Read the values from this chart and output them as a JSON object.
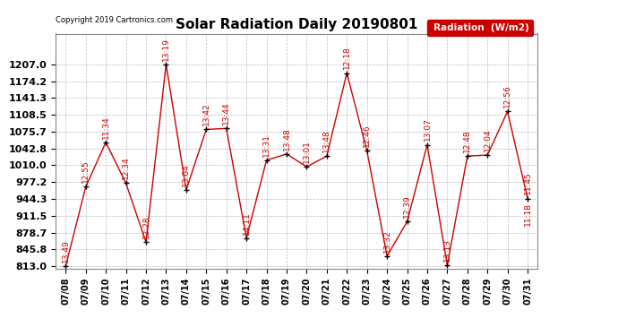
{
  "title": "Solar Radiation Daily 20190801",
  "copyright": "Copyright 2019 Cartronics.com",
  "legend_label": "Radiation  (W/m2)",
  "dates": [
    "07/08",
    "07/09",
    "07/10",
    "07/11",
    "07/12",
    "07/13",
    "07/14",
    "07/15",
    "07/16",
    "07/17",
    "07/18",
    "07/19",
    "07/20",
    "07/21",
    "07/22",
    "07/23",
    "07/24",
    "07/25",
    "07/26",
    "07/27",
    "07/28",
    "07/29",
    "07/30",
    "07/31"
  ],
  "values": [
    813.0,
    968.0,
    1055.0,
    975.0,
    860.0,
    1207.0,
    962.0,
    1080.0,
    1082.0,
    868.0,
    1020.0,
    1032.0,
    1007.0,
    1028.0,
    1190.0,
    1038.0,
    833.0,
    900.0,
    1050.0,
    815.0,
    1028.0,
    1030.0,
    1115.0,
    945.0
  ],
  "time_labels": [
    "13:49",
    "12:55",
    "11:34",
    "12:34",
    "12:28",
    "13:19",
    "13:04",
    "13:42",
    "13:44",
    "14:11",
    "13:31",
    "13:48",
    "13:01",
    "13:48",
    "12:18",
    "12:46",
    "13:32",
    "12:39",
    "13:07",
    "13:13",
    "12:48",
    "12:04",
    "12:56",
    "11:45"
  ],
  "extra_label": "11:18",
  "yticks": [
    813.0,
    845.8,
    878.7,
    911.5,
    944.3,
    977.2,
    1010.0,
    1042.8,
    1075.7,
    1108.5,
    1141.3,
    1174.2,
    1207.0
  ],
  "ymin": 813.0,
  "ymax": 1207.0,
  "line_color": "#cc0000",
  "marker_color": "#000000",
  "label_color": "#cc0000",
  "bg_color": "#ffffff",
  "grid_color": "#bbbbbb",
  "title_fontsize": 11,
  "label_fontsize": 6.5,
  "tick_fontsize": 8,
  "legend_bg": "#cc0000",
  "legend_fg": "#ffffff"
}
